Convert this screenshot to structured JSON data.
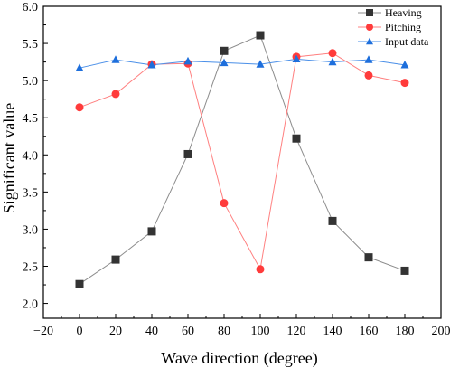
{
  "chart_data": {
    "type": "line",
    "xlabel": "Wave direction (degree)",
    "ylabel": "Significant value",
    "xlim": [
      -20,
      200
    ],
    "ylim": [
      1.8,
      6.0
    ],
    "xticks": [
      -20,
      0,
      20,
      40,
      60,
      80,
      100,
      120,
      140,
      160,
      180,
      200
    ],
    "xtick_labels": [
      "−20",
      "0",
      "20",
      "40",
      "60",
      "80",
      "100",
      "120",
      "140",
      "160",
      "180",
      "200"
    ],
    "yticks": [
      2.0,
      2.5,
      3.0,
      3.5,
      4.0,
      4.5,
      5.0,
      5.5,
      6.0
    ],
    "ytick_labels": [
      "2.0",
      "2.5",
      "3.0",
      "3.5",
      "4.0",
      "4.5",
      "5.0",
      "5.5",
      "6.0"
    ],
    "grid": false,
    "legend_position": "top-right",
    "x": [
      0,
      20,
      40,
      60,
      80,
      100,
      120,
      140,
      160,
      180
    ],
    "series": [
      {
        "name": "Heaving",
        "marker": "square",
        "color": "#333333",
        "line_color": "#8c8c8c",
        "values": [
          2.26,
          2.59,
          2.97,
          4.01,
          5.4,
          5.61,
          4.22,
          3.11,
          2.62,
          2.44
        ]
      },
      {
        "name": "Pitching",
        "marker": "circle",
        "color": "#ff3b3b",
        "line_color": "#ff8080",
        "values": [
          4.64,
          4.82,
          5.22,
          5.23,
          3.35,
          2.46,
          5.32,
          5.37,
          5.07,
          4.97
        ]
      },
      {
        "name": "Input data",
        "marker": "triangle",
        "color": "#1e6fdc",
        "line_color": "#4a8fe8",
        "values": [
          5.17,
          5.28,
          5.21,
          5.26,
          5.24,
          5.22,
          5.29,
          5.25,
          5.28,
          5.21
        ]
      }
    ]
  }
}
